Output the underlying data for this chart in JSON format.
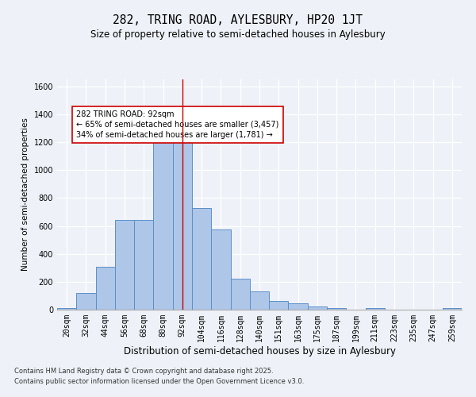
{
  "title1": "282, TRING ROAD, AYLESBURY, HP20 1JT",
  "title2": "Size of property relative to semi-detached houses in Aylesbury",
  "xlabel": "Distribution of semi-detached houses by size in Aylesbury",
  "ylabel": "Number of semi-detached properties",
  "categories": [
    "20sqm",
    "32sqm",
    "44sqm",
    "56sqm",
    "68sqm",
    "80sqm",
    "92sqm",
    "104sqm",
    "116sqm",
    "128sqm",
    "140sqm",
    "151sqm",
    "163sqm",
    "175sqm",
    "187sqm",
    "199sqm",
    "211sqm",
    "223sqm",
    "235sqm",
    "247sqm",
    "259sqm"
  ],
  "values": [
    10,
    120,
    310,
    645,
    645,
    1210,
    1240,
    730,
    575,
    220,
    130,
    60,
    45,
    25,
    10,
    0,
    10,
    0,
    0,
    0,
    10
  ],
  "bar_color": "#aec6e8",
  "bar_edge_color": "#5b8fc9",
  "vline_x": 6,
  "vline_color": "#cc0000",
  "annotation_title": "282 TRING ROAD: 92sqm",
  "annotation_line1": "← 65% of semi-detached houses are smaller (3,457)",
  "annotation_line2": "34% of semi-detached houses are larger (1,781) →",
  "annotation_box_color": "#ffffff",
  "annotation_box_edge": "#cc0000",
  "ylim": [
    0,
    1650
  ],
  "yticks": [
    0,
    200,
    400,
    600,
    800,
    1000,
    1200,
    1400,
    1600
  ],
  "footer1": "Contains HM Land Registry data © Crown copyright and database right 2025.",
  "footer2": "Contains public sector information licensed under the Open Government Licence v3.0.",
  "bg_color": "#eef2f8",
  "grid_color": "#ffffff",
  "title1_fontsize": 10.5,
  "title2_fontsize": 8.5,
  "xlabel_fontsize": 8.5,
  "ylabel_fontsize": 7.5,
  "tick_fontsize": 7.0,
  "annotation_fontsize": 7.0,
  "footer_fontsize": 6.0
}
